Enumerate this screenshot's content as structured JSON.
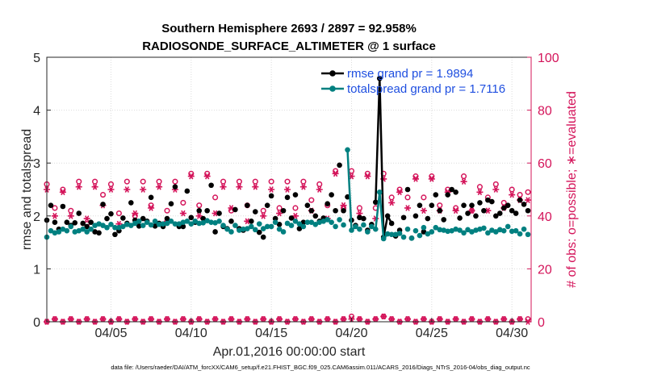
{
  "chart_data": {
    "type": "line",
    "title": "Southern Hemisphere 2693 / 2897 = 92.958%",
    "subtitle": "RADIOSONDE_SURFACE_ALTIMETER @ 1 surface",
    "xlabel": "Apr.01,2016 00:00:00 start",
    "ylabel": "rmse and totalspread",
    "y2label": "# of obs: o=possible; ∗=evaluated",
    "footer": "data file: /Users/raeder/DAI/ATM_forcXX/CAM6_setup/f.e21.FHIST_BGC.f09_025.CAM6assim.011/ACARS_2016/Diags_NTrS_2016-04/obs_diag_output.nc",
    "xlim": [
      1.0,
      31.2
    ],
    "ylim": [
      0,
      5
    ],
    "y2lim": [
      0,
      100
    ],
    "xticks": [
      5,
      10,
      15,
      20,
      25,
      30
    ],
    "xtick_labels": [
      "04/05",
      "04/10",
      "04/15",
      "04/20",
      "04/25",
      "04/30"
    ],
    "yticks": [
      0,
      1,
      2,
      3,
      4,
      5
    ],
    "ytick_labels": [
      "0",
      "1",
      "2",
      "3",
      "4",
      "5"
    ],
    "y2ticks": [
      0,
      20,
      40,
      60,
      80,
      100
    ],
    "y2tick_labels": [
      "0",
      "20",
      "40",
      "60",
      "80",
      "100"
    ],
    "x": [
      1.0,
      1.25,
      1.5,
      1.75,
      2.0,
      2.25,
      2.5,
      2.75,
      3.0,
      3.25,
      3.5,
      3.75,
      4.0,
      4.25,
      4.5,
      4.75,
      5.0,
      5.25,
      5.5,
      5.75,
      6.0,
      6.25,
      6.5,
      6.75,
      7.0,
      7.25,
      7.5,
      7.75,
      8.0,
      8.25,
      8.5,
      8.75,
      9.0,
      9.25,
      9.5,
      9.75,
      10.0,
      10.25,
      10.5,
      10.75,
      11.0,
      11.25,
      11.5,
      11.75,
      12.0,
      12.25,
      12.5,
      12.75,
      13.0,
      13.25,
      13.5,
      13.75,
      14.0,
      14.25,
      14.5,
      14.75,
      15.0,
      15.25,
      15.5,
      15.75,
      16.0,
      16.25,
      16.5,
      16.75,
      17.0,
      17.25,
      17.5,
      17.75,
      18.0,
      18.25,
      18.5,
      18.75,
      19.0,
      19.25,
      19.5,
      19.75,
      20.0,
      20.25,
      20.5,
      20.75,
      21.0,
      21.25,
      21.5,
      21.75,
      22.0,
      22.25,
      22.5,
      22.75,
      23.0,
      23.25,
      23.5,
      23.75,
      24.0,
      24.25,
      24.5,
      24.75,
      25.0,
      25.25,
      25.5,
      25.75,
      26.0,
      26.25,
      26.5,
      26.75,
      27.0,
      27.25,
      27.5,
      27.75,
      28.0,
      28.25,
      28.5,
      28.75,
      29.0,
      29.25,
      29.5,
      29.75,
      30.0,
      30.25,
      30.5,
      30.75,
      31.0
    ],
    "series": [
      {
        "name": "rmse",
        "legend": "rmse grand pr = 1.9894",
        "color": "#000000",
        "axis": "left",
        "values": [
          1.92,
          2.2,
          1.88,
          1.75,
          2.18,
          1.88,
          1.82,
          1.87,
          2.05,
          1.86,
          1.8,
          1.88,
          1.7,
          1.68,
          2.22,
          1.95,
          2.04,
          1.65,
          1.72,
          1.96,
          1.86,
          2.25,
          1.92,
          1.81,
          1.95,
          1.9,
          2.35,
          1.81,
          1.86,
          1.8,
          1.95,
          2.23,
          2.55,
          1.8,
          1.8,
          2.47,
          1.97,
          1.88,
          2.1,
          1.95,
          2.1,
          2.58,
          1.7,
          2.05,
          1.8,
          1.76,
          1.9,
          2.12,
          1.76,
          1.73,
          2.2,
          1.9,
          2.08,
          1.69,
          1.6,
          2.2,
          2.38,
          1.95,
          1.84,
          2.1,
          2.35,
          1.96,
          2.4,
          1.76,
          1.88,
          2.2,
          2.1,
          2.0,
          1.9,
          1.96,
          2.23,
          2.4,
          2.1,
          2.96,
          2.1,
          2.36,
          1.92,
          1.82,
          1.97,
          1.95,
          1.73,
          1.84,
          2.26,
          4.6,
          1.6,
          2.0,
          1.86,
          1.62,
          1.73,
          1.97,
          2.5,
          1.58,
          2.0,
          2.2,
          1.7,
          1.95,
          2.2,
          2.4,
          2.1,
          1.93,
          2.4,
          2.5,
          2.45,
          1.96,
          2.2,
          2.05,
          2.2,
          2.0,
          2.25,
          2.1,
          2.3,
          2.27,
          2.0,
          2.05,
          2.15,
          2.2,
          2.1,
          2.05,
          2.3,
          2.22,
          2.1
        ]
      },
      {
        "name": "totalspread",
        "legend": "totalspread grand pr = 1.7116",
        "color": "#008080",
        "axis": "left",
        "values": [
          1.6,
          1.72,
          1.68,
          1.7,
          1.75,
          1.72,
          1.8,
          1.7,
          1.72,
          1.75,
          1.7,
          1.75,
          1.82,
          1.85,
          1.82,
          1.78,
          1.84,
          1.78,
          1.78,
          1.8,
          1.84,
          1.82,
          1.86,
          1.9,
          1.82,
          1.88,
          1.83,
          1.9,
          1.84,
          1.85,
          1.86,
          1.9,
          1.85,
          1.85,
          1.88,
          1.9,
          1.85,
          1.9,
          1.86,
          1.87,
          1.91,
          1.88,
          1.87,
          1.9,
          1.82,
          1.75,
          1.7,
          1.82,
          1.73,
          1.75,
          1.76,
          1.8,
          1.74,
          1.85,
          1.76,
          1.8,
          1.8,
          1.88,
          1.75,
          1.7,
          1.86,
          1.82,
          1.9,
          1.85,
          1.8,
          1.88,
          1.88,
          1.84,
          1.88,
          1.9,
          1.93,
          1.88,
          1.8,
          1.93,
          1.83,
          3.25,
          1.73,
          1.8,
          1.75,
          1.83,
          1.7,
          1.8,
          1.75,
          2.45,
          1.57,
          1.66,
          1.65,
          1.65,
          1.67,
          1.6,
          1.75,
          1.58,
          1.72,
          1.63,
          1.78,
          1.66,
          1.7,
          1.78,
          1.74,
          1.73,
          1.71,
          1.72,
          1.75,
          1.73,
          1.68,
          1.74,
          1.7,
          1.73,
          1.75,
          1.77,
          1.68,
          1.73,
          1.7,
          1.74,
          1.72,
          1.8,
          1.71,
          1.72,
          1.66,
          1.75,
          1.65
        ]
      }
    ],
    "obs_possible": {
      "name": "# of obs possible",
      "marker": "o",
      "color": "#d4145a",
      "axis": "right",
      "x": [
        1,
        1.5,
        2,
        2.5,
        3,
        3.5,
        4,
        4.5,
        5,
        5.5,
        6,
        6.5,
        7,
        7.5,
        8,
        8.5,
        9,
        9.5,
        10,
        10.5,
        11,
        11.5,
        12,
        12.5,
        13,
        13.5,
        14,
        14.5,
        15,
        15.5,
        16,
        16.5,
        17,
        17.5,
        18,
        18.5,
        19,
        19.5,
        20,
        20.5,
        21,
        21.5,
        22,
        22.5,
        23,
        23.5,
        24,
        24.5,
        25,
        25.5,
        26,
        26.5,
        27,
        27.5,
        28,
        28.5,
        29,
        29.5,
        30,
        30.5,
        31
      ],
      "values": [
        52,
        43,
        50,
        42,
        53,
        37,
        53,
        48,
        52,
        41,
        53,
        40,
        53,
        44,
        53,
        42,
        53,
        45,
        56,
        44,
        56,
        47,
        53,
        42,
        53,
        44,
        53,
        42,
        53,
        43,
        53,
        43,
        53,
        46,
        52,
        44,
        57,
        43,
        57,
        43,
        56,
        43,
        56,
        47,
        50,
        47,
        55,
        47,
        55,
        44,
        50,
        43,
        55,
        42,
        51,
        47,
        52,
        45,
        50,
        48,
        49
      ]
    },
    "obs_evaluated": {
      "name": "# of obs evaluated",
      "marker": "*",
      "color": "#d4145a",
      "axis": "right",
      "x": [
        1,
        1.5,
        2,
        2.5,
        3,
        3.5,
        4,
        4.5,
        5,
        5.5,
        6,
        6.5,
        7,
        7.5,
        8,
        8.5,
        9,
        9.5,
        10,
        10.5,
        11,
        11.5,
        12,
        12.5,
        13,
        13.5,
        14,
        14.5,
        15,
        15.5,
        16,
        16.5,
        17,
        17.5,
        18,
        18.5,
        19,
        19.5,
        20,
        20.5,
        21,
        21.5,
        22,
        22.5,
        23,
        23.5,
        24,
        24.5,
        25,
        25.5,
        26,
        26.5,
        27,
        27.5,
        28,
        28.5,
        29,
        29.5,
        30,
        30.5,
        31
      ],
      "values": [
        50,
        40,
        49,
        40,
        51,
        39,
        51,
        44,
        50,
        37,
        50,
        41,
        50,
        43,
        51,
        38,
        50,
        41,
        55,
        40,
        55,
        41,
        51,
        43,
        51,
        38,
        51,
        40,
        50,
        41,
        50,
        40,
        51,
        42,
        50,
        39,
        56,
        44,
        55,
        41,
        55,
        39,
        54,
        45,
        49,
        43,
        54,
        42,
        54,
        42,
        49,
        42,
        53,
        42,
        49,
        42,
        50,
        43,
        48,
        46,
        46
      ]
    },
    "obs_possible_low": {
      "name": "# of obs possible (lower band)",
      "marker": "o",
      "color": "#d4145a",
      "x": [
        1,
        1.5,
        2,
        2.5,
        3,
        3.5,
        4,
        4.5,
        5,
        5.5,
        6,
        6.5,
        7,
        7.5,
        8,
        8.5,
        9,
        9.5,
        10,
        10.5,
        11,
        11.5,
        12,
        12.5,
        13,
        13.5,
        14,
        14.5,
        15,
        15.5,
        16,
        16.5,
        17,
        17.5,
        18,
        18.5,
        19,
        19.5,
        20,
        20.5,
        21,
        21.5,
        22,
        22.5,
        23,
        23.5,
        24,
        24.5,
        25,
        25.5,
        26,
        26.5,
        27,
        27.5,
        28,
        28.5,
        29,
        29.5,
        30,
        30.5,
        31
      ],
      "values": [
        0,
        1,
        0,
        1,
        0,
        1,
        0,
        1,
        0,
        1,
        0,
        1,
        0,
        1,
        0,
        1,
        0,
        1,
        0,
        1,
        0,
        1,
        0,
        1,
        0,
        1,
        0,
        1,
        0,
        1,
        0,
        1,
        0,
        1,
        0,
        1,
        0,
        1,
        2,
        1,
        0,
        1,
        2,
        1,
        0,
        1,
        0,
        1,
        0,
        1,
        0,
        1,
        0,
        1,
        0,
        1,
        0,
        1,
        0,
        1,
        1
      ]
    },
    "obs_evaluated_low": {
      "name": "# of obs evaluated (lower band)",
      "marker": "*",
      "color": "#d4145a",
      "x": [
        1,
        1.5,
        2,
        2.5,
        3,
        3.5,
        4,
        4.5,
        5,
        5.5,
        6,
        6.5,
        7,
        7.5,
        8,
        8.5,
        9,
        9.5,
        10,
        10.5,
        11,
        11.5,
        12,
        12.5,
        13,
        13.5,
        14,
        14.5,
        15,
        15.5,
        16,
        16.5,
        17,
        17.5,
        18,
        18.5,
        19,
        19.5,
        20,
        20.5,
        21,
        21.5,
        22,
        22.5,
        23,
        23.5,
        24,
        24.5,
        25,
        25.5,
        26,
        26.5,
        27,
        27.5,
        28,
        28.5,
        29,
        29.5,
        30,
        30.5,
        31
      ],
      "values": [
        0,
        1,
        0,
        1,
        0,
        1,
        0,
        1,
        0,
        1,
        0,
        1,
        0,
        1,
        0,
        1,
        0,
        1,
        0,
        1,
        0,
        1,
        0,
        1,
        0,
        1,
        0,
        1,
        0,
        1,
        0,
        1,
        0,
        1,
        0,
        1,
        0,
        1,
        1,
        1,
        0,
        1,
        2,
        1,
        0,
        1,
        0,
        1,
        0,
        1,
        0,
        1,
        0,
        1,
        0,
        1,
        0,
        1,
        0,
        1,
        0
      ]
    },
    "grid": true,
    "legend_position": "top-right"
  }
}
